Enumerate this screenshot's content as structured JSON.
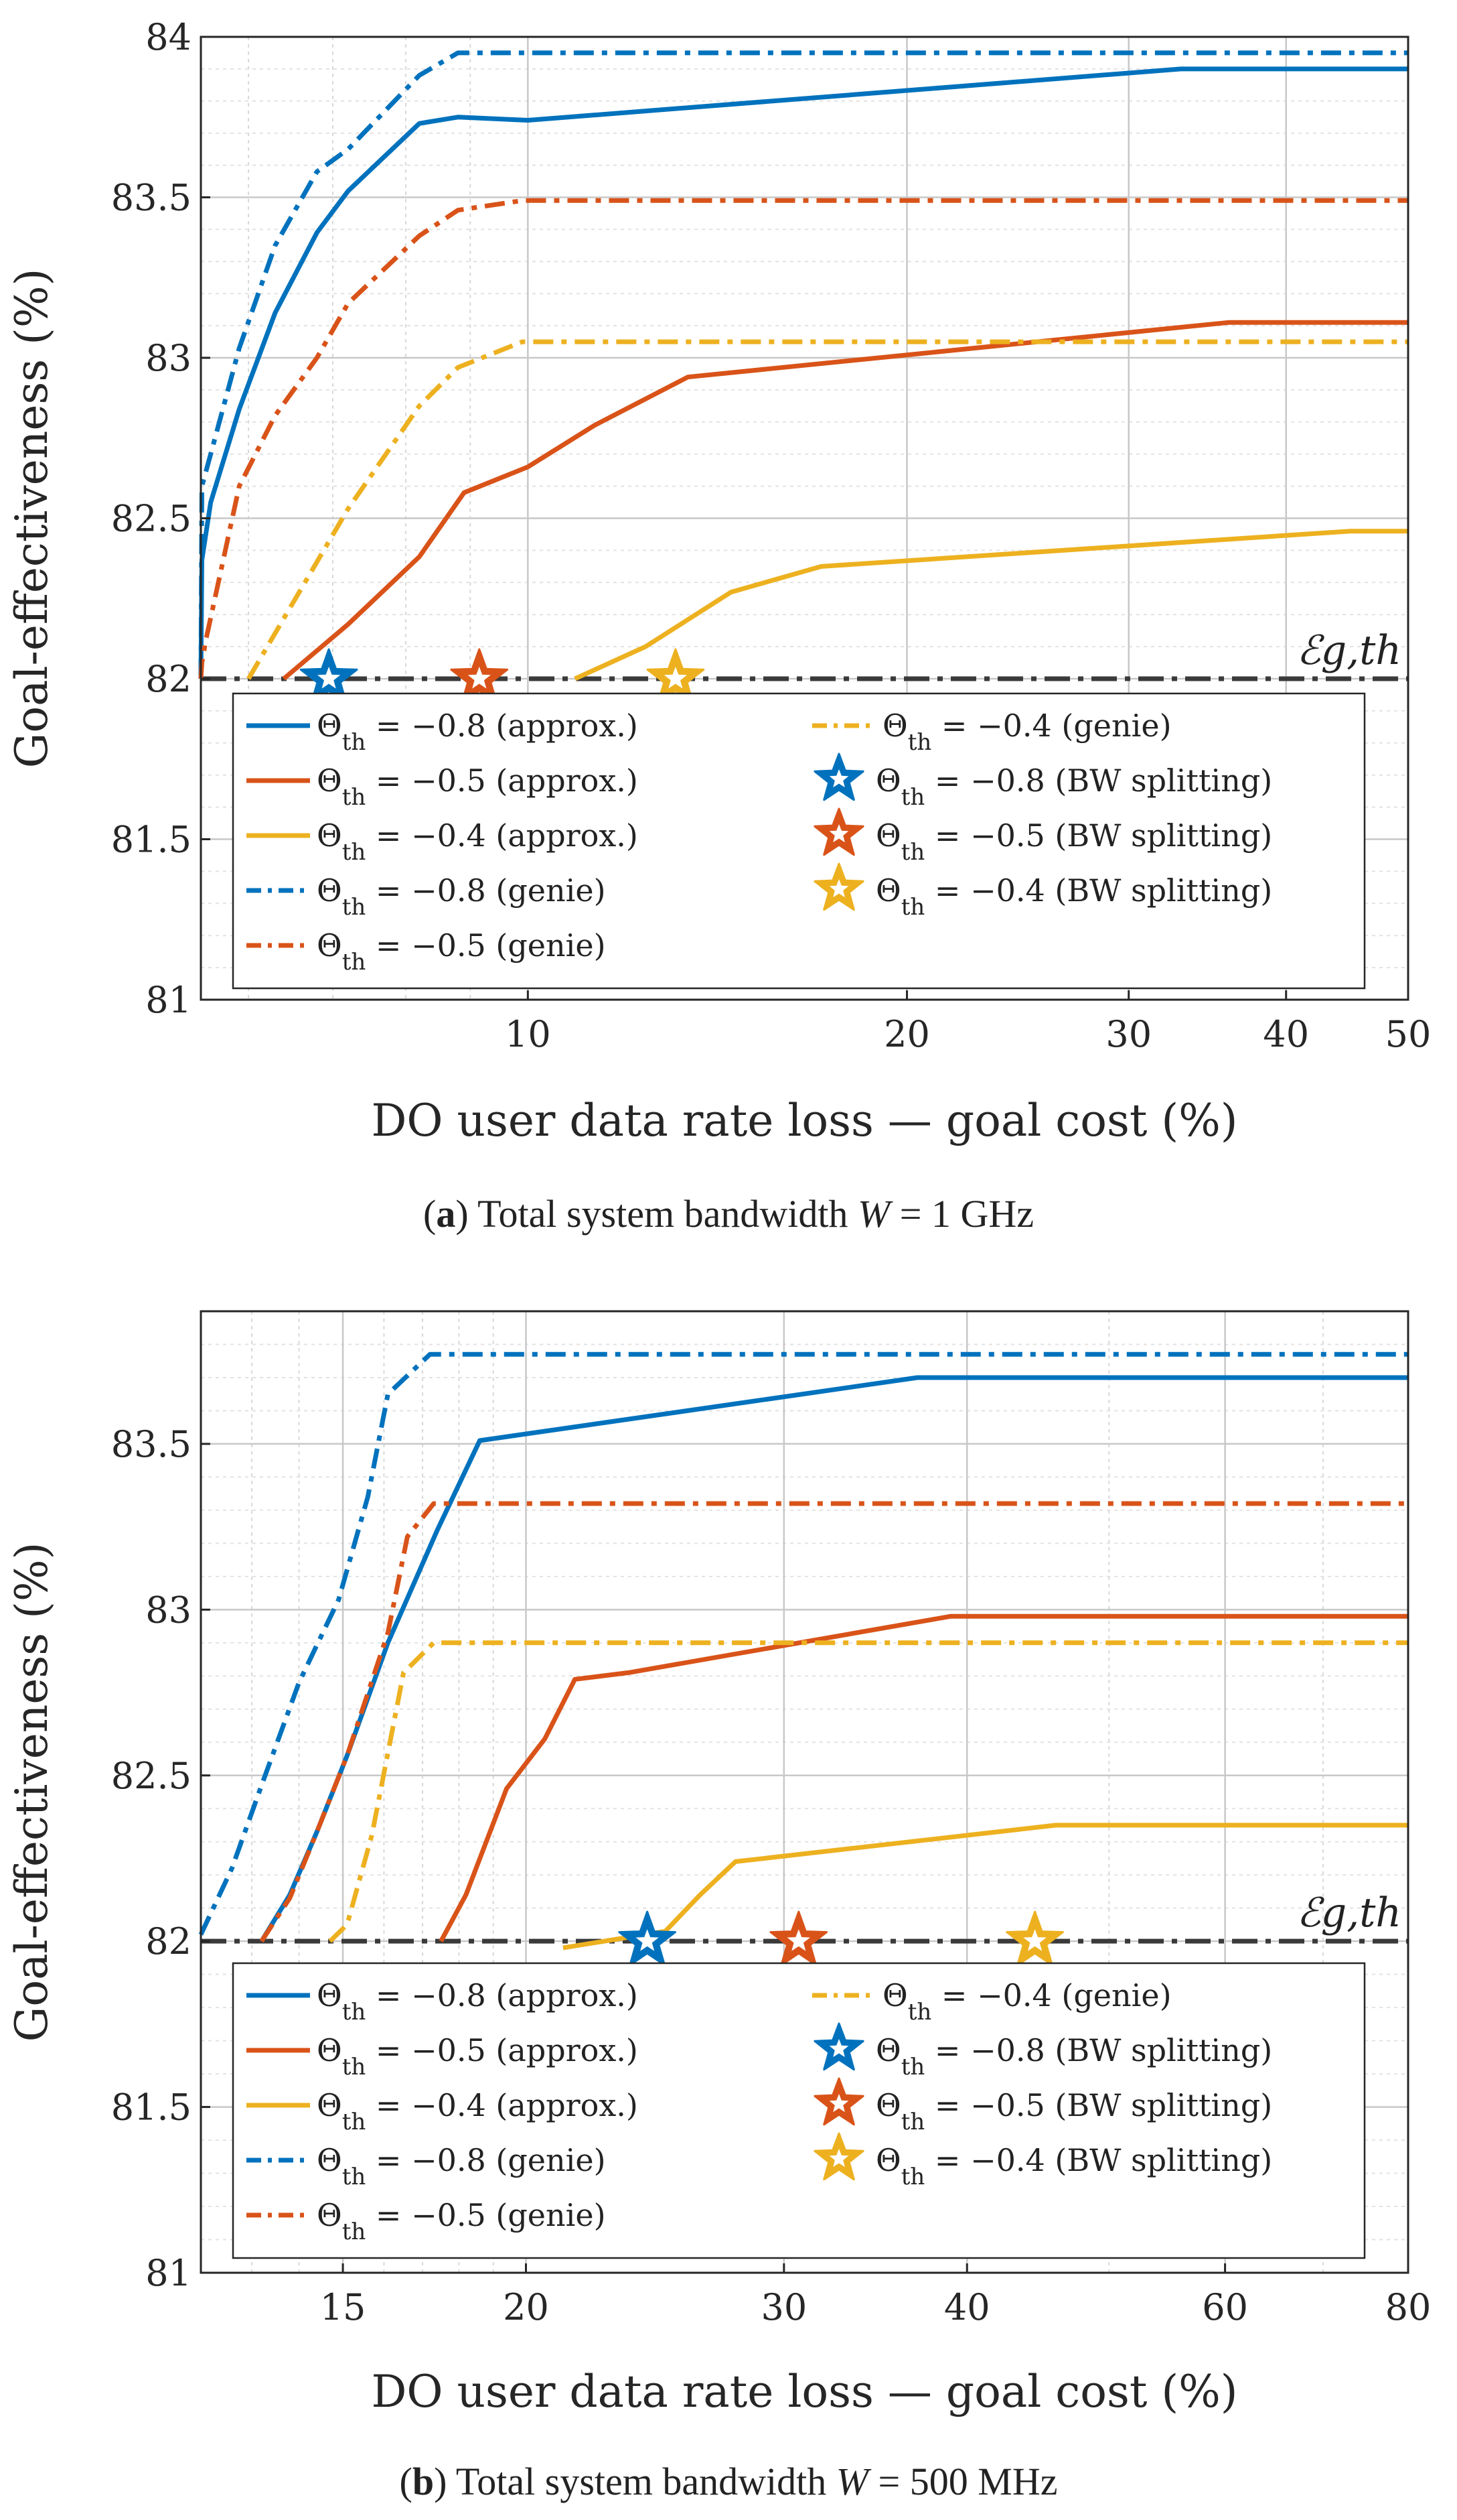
{
  "chart_data": [
    {
      "type": "line",
      "id": "a",
      "caption": {
        "label": "a",
        "text": "Total system bandwidth W = 1 GHz",
        "prefix": "Total system bandwidth ",
        "var": "W",
        "eq": " = 1 GHz"
      },
      "xlabel": "DO user data rate loss — goal cost (%)",
      "ylabel": "Goal-effectiveness (%)",
      "xscale": "log",
      "xlim": [
        5.5,
        50
      ],
      "ylim": [
        81,
        84
      ],
      "xticks": [
        10,
        20,
        30,
        40,
        50
      ],
      "yticks": [
        81,
        81.5,
        82,
        82.5,
        83,
        83.5,
        84
      ],
      "ytick_labels": [
        "81",
        "81.5",
        "82",
        "82.5",
        "83",
        "83.5",
        "84"
      ],
      "threshold": {
        "value": 82,
        "label": "ℰg,th"
      },
      "series": [
        {
          "name": "Θth = −0.8 (approx.)",
          "theta": "−0.8",
          "kind": "approx.",
          "color": "#0072BD",
          "style": "solid",
          "x": [
            5.5,
            5.51,
            5.6,
            5.9,
            6.3,
            6.8,
            7.2,
            8.2,
            8.8,
            10,
            33,
            50
          ],
          "y": [
            82,
            82.37,
            82.55,
            82.84,
            83.14,
            83.39,
            83.52,
            83.73,
            83.75,
            83.74,
            83.9,
            83.9
          ]
        },
        {
          "name": "Θth = −0.5 (approx.)",
          "theta": "−0.5",
          "kind": "approx.",
          "color": "#D95319",
          "style": "solid",
          "x": [
            6.4,
            7.2,
            8.2,
            8.9,
            10,
            11.3,
            13.4,
            36,
            50
          ],
          "y": [
            82.0,
            82.17,
            82.38,
            82.58,
            82.66,
            82.79,
            82.94,
            83.11,
            83.11
          ],
          "marker": {
            "x": 13.4,
            "y": 82.94,
            "color": "#D95319"
          }
        },
        {
          "name": "Θth = −0.4 (approx.)",
          "theta": "−0.4",
          "kind": "approx.",
          "color": "#EDB120",
          "style": "solid",
          "x": [
            10.9,
            12.4,
            14.5,
            17.1,
            45,
            50
          ],
          "y": [
            82.0,
            82.1,
            82.27,
            82.35,
            82.46,
            82.46
          ]
        },
        {
          "name": "Θth = −0.8 (genie)",
          "theta": "−0.8",
          "kind": "genie",
          "color": "#0072BD",
          "style": "dashdot",
          "x": [
            5.5,
            5.51,
            5.6,
            5.9,
            6.3,
            6.8,
            7.2,
            8.2,
            8.8,
            50
          ],
          "y": [
            82.0,
            82.6,
            82.7,
            83.03,
            83.35,
            83.58,
            83.65,
            83.88,
            83.95,
            83.95
          ]
        },
        {
          "name": "Θth = −0.5 (genie)",
          "theta": "−0.5",
          "kind": "genie",
          "color": "#D95319",
          "style": "dashdot",
          "x": [
            5.5,
            5.51,
            5.55,
            5.9,
            6.3,
            6.8,
            7.2,
            8.2,
            8.8,
            9.9,
            50
          ],
          "y": [
            82.0,
            82.05,
            82.12,
            82.6,
            82.82,
            83.0,
            83.17,
            83.38,
            83.46,
            83.49,
            83.49
          ]
        },
        {
          "name": "Θth = −0.4 (genie)",
          "theta": "−0.4",
          "kind": "genie",
          "color": "#EDB120",
          "style": "dashdot",
          "x": [
            6.0,
            7.2,
            8.2,
            8.8,
            9.9,
            50
          ],
          "y": [
            82.0,
            82.53,
            82.85,
            82.97,
            83.05,
            83.05
          ]
        }
      ],
      "bw_splitting": [
        {
          "name": "Θth = −0.8 (BW splitting)",
          "theta": "−0.8",
          "color": "#0072BD",
          "x": 6.95,
          "y": 82
        },
        {
          "name": "Θth = −0.5 (BW splitting)",
          "theta": "−0.5",
          "color": "#D95319",
          "x": 9.15,
          "y": 82
        },
        {
          "name": "Θth = −0.4 (BW splitting)",
          "theta": "−0.4",
          "color": "#EDB120",
          "x": 13.1,
          "y": 82
        }
      ]
    },
    {
      "type": "line",
      "id": "b",
      "caption": {
        "label": "b",
        "text": "Total system bandwidth W = 500 MHz",
        "prefix": "Total system bandwidth ",
        "var": "W",
        "eq": " = 500 MHz"
      },
      "xlabel": "DO user data rate loss — goal cost (%)",
      "ylabel": "Goal-effectiveness (%)",
      "xscale": "log",
      "xlim": [
        12,
        80
      ],
      "ylim": [
        81,
        83.9
      ],
      "xticks": [
        15,
        20,
        30,
        40,
        60,
        80
      ],
      "yticks": [
        81,
        81.5,
        82,
        82.5,
        83,
        83.5
      ],
      "ytick_labels": [
        "81",
        "81.5",
        "82",
        "82.5",
        "83",
        "83.5"
      ],
      "threshold": {
        "value": 82,
        "label": "ℰg,th"
      },
      "series": [
        {
          "name": "Θth = −0.8 (approx.)",
          "theta": "−0.8",
          "kind": "approx.",
          "color": "#0072BD",
          "style": "solid",
          "x": [
            13.2,
            13.8,
            14.4,
            15.1,
            16.1,
            17.4,
            18.6,
            37,
            80
          ],
          "y": [
            82.0,
            82.14,
            82.33,
            82.56,
            82.9,
            83.24,
            83.51,
            83.7,
            83.7
          ]
        },
        {
          "name": "Θth = −0.5 (approx.)",
          "theta": "−0.5",
          "kind": "approx.",
          "color": "#D95319",
          "style": "solid",
          "x": [
            17.5,
            18.2,
            19.4,
            20.6,
            21.6,
            23.5,
            39,
            80
          ],
          "y": [
            82.0,
            82.14,
            82.46,
            82.61,
            82.79,
            82.81,
            82.98,
            82.98
          ]
        },
        {
          "name": "Θth = −0.4 (approx.)",
          "theta": "−0.4",
          "kind": "approx.",
          "color": "#EDB120",
          "style": "solid",
          "x": [
            21.2,
            24.9,
            26.3,
            27.8,
            46,
            80
          ],
          "y": [
            81.98,
            82.03,
            82.14,
            82.24,
            82.35,
            82.35
          ]
        },
        {
          "name": "Θth = −0.8 (genie)",
          "theta": "−0.8",
          "kind": "genie",
          "color": "#0072BD",
          "style": "dashdot",
          "x": [
            12.0,
            12.6,
            13.2,
            14.0,
            14.9,
            15.6,
            16.1,
            17.2,
            80
          ],
          "y": [
            82.02,
            82.22,
            82.47,
            82.78,
            83.03,
            83.34,
            83.65,
            83.77,
            83.77
          ]
        },
        {
          "name": "Θth = −0.5 (genie)",
          "theta": "−0.5",
          "kind": "genie",
          "color": "#D95319",
          "style": "dashdot",
          "x": [
            13.2,
            13.8,
            14.4,
            15.1,
            16.1,
            16.6,
            17.3,
            80
          ],
          "y": [
            82.0,
            82.13,
            82.33,
            82.56,
            82.93,
            83.22,
            83.32,
            83.32
          ]
        },
        {
          "name": "Θth = −0.4 (genie)",
          "theta": "−0.4",
          "kind": "genie",
          "color": "#EDB120",
          "style": "dashdot",
          "x": [
            14.7,
            15.1,
            15.7,
            16.5,
            17.3,
            80
          ],
          "y": [
            82.0,
            82.05,
            82.32,
            82.81,
            82.9,
            82.9
          ]
        }
      ],
      "bw_splitting": [
        {
          "name": "Θth = −0.8 (BW splitting)",
          "theta": "−0.8",
          "color": "#0072BD",
          "x": 24.2,
          "y": 82
        },
        {
          "name": "Θth = −0.5 (BW splitting)",
          "theta": "−0.5",
          "color": "#D95319",
          "x": 30.7,
          "y": 82
        },
        {
          "name": "Θth = −0.4 (BW splitting)",
          "theta": "−0.4",
          "color": "#EDB120",
          "x": 44.5,
          "y": 82
        }
      ]
    }
  ]
}
